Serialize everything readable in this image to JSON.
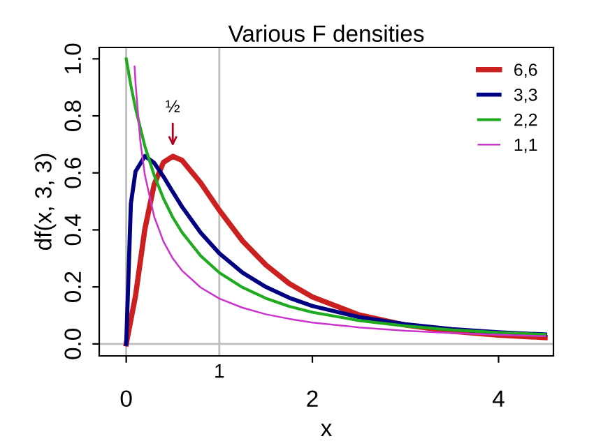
{
  "chart_data": {
    "type": "line",
    "title": "Various F densities",
    "xlabel": "x",
    "ylabel": "df(x, 3, 3)",
    "xlim": [
      -0.29,
      4.59
    ],
    "ylim": [
      -0.042,
      1.04
    ],
    "xticks": [
      0,
      2,
      4
    ],
    "yticks": [
      {
        "value": 0,
        "label": "0.0"
      },
      {
        "value": 0.2,
        "label": "0.2"
      },
      {
        "value": 0.4,
        "label": "0.4"
      },
      {
        "value": 0.6,
        "label": "0.6"
      },
      {
        "value": 0.8,
        "label": "0.8"
      },
      {
        "value": 1,
        "label": "1.0"
      }
    ],
    "grid": false,
    "legend": "top right",
    "line_style": "solid",
    "marker": "none",
    "ref_lines": [
      {
        "axis": "x",
        "value": 0,
        "color": "#bebebe"
      },
      {
        "axis": "x",
        "value": 1,
        "label": "1",
        "color": "#bebebe"
      },
      {
        "axis": "y",
        "value": 0,
        "color": "#bebebe"
      }
    ],
    "annotations": [
      {
        "text": "½",
        "x": 0.5,
        "y": 0.66
      }
    ],
    "series": [
      {
        "name": "6,6",
        "color": "#cc1f1f",
        "x": [
          0,
          0.1,
          0.2,
          0.3,
          0.4,
          0.5,
          0.6,
          0.8,
          1,
          1.25,
          1.5,
          1.75,
          2,
          2.5,
          3,
          3.5,
          4,
          4.5
        ],
        "values": [
          0,
          0.169,
          0.402,
          0.559,
          0.637,
          0.658,
          0.644,
          0.565,
          0.469,
          0.361,
          0.277,
          0.212,
          0.165,
          0.102,
          0.066,
          0.044,
          0.031,
          0.022
        ]
      },
      {
        "name": "3,3",
        "color": "#000080",
        "x": [
          0,
          0.05,
          0.1,
          0.2,
          0.3,
          0.4,
          0.5,
          0.6,
          0.8,
          1,
          1.25,
          1.5,
          1.75,
          2,
          2.5,
          3,
          3.5,
          4,
          4.5
        ],
        "values": [
          0,
          0.492,
          0.605,
          0.659,
          0.635,
          0.587,
          0.533,
          0.481,
          0.39,
          0.318,
          0.25,
          0.2,
          0.162,
          0.133,
          0.094,
          0.069,
          0.052,
          0.041,
          0.033
        ]
      },
      {
        "name": "2,2",
        "color": "#1faa1f",
        "x": [
          0,
          0.05,
          0.1,
          0.2,
          0.3,
          0.4,
          0.5,
          0.6,
          0.8,
          1,
          1.25,
          1.5,
          1.75,
          2,
          2.5,
          3,
          3.5,
          4,
          4.5
        ],
        "values": [
          1,
          0.907,
          0.826,
          0.694,
          0.592,
          0.51,
          0.444,
          0.391,
          0.309,
          0.25,
          0.198,
          0.16,
          0.132,
          0.111,
          0.082,
          0.063,
          0.049,
          0.04,
          0.033
        ]
      },
      {
        "name": "1,1",
        "color": "#cc33cc",
        "x": [
          0.09,
          0.1,
          0.15,
          0.2,
          0.3,
          0.4,
          0.5,
          0.6,
          0.8,
          1,
          1.25,
          1.5,
          1.75,
          2,
          2.5,
          3,
          3.5,
          4,
          4.5
        ],
        "values": [
          0.973,
          0.915,
          0.715,
          0.593,
          0.447,
          0.359,
          0.3,
          0.257,
          0.198,
          0.159,
          0.127,
          0.104,
          0.088,
          0.075,
          0.058,
          0.046,
          0.038,
          0.032,
          0.027
        ]
      }
    ]
  }
}
